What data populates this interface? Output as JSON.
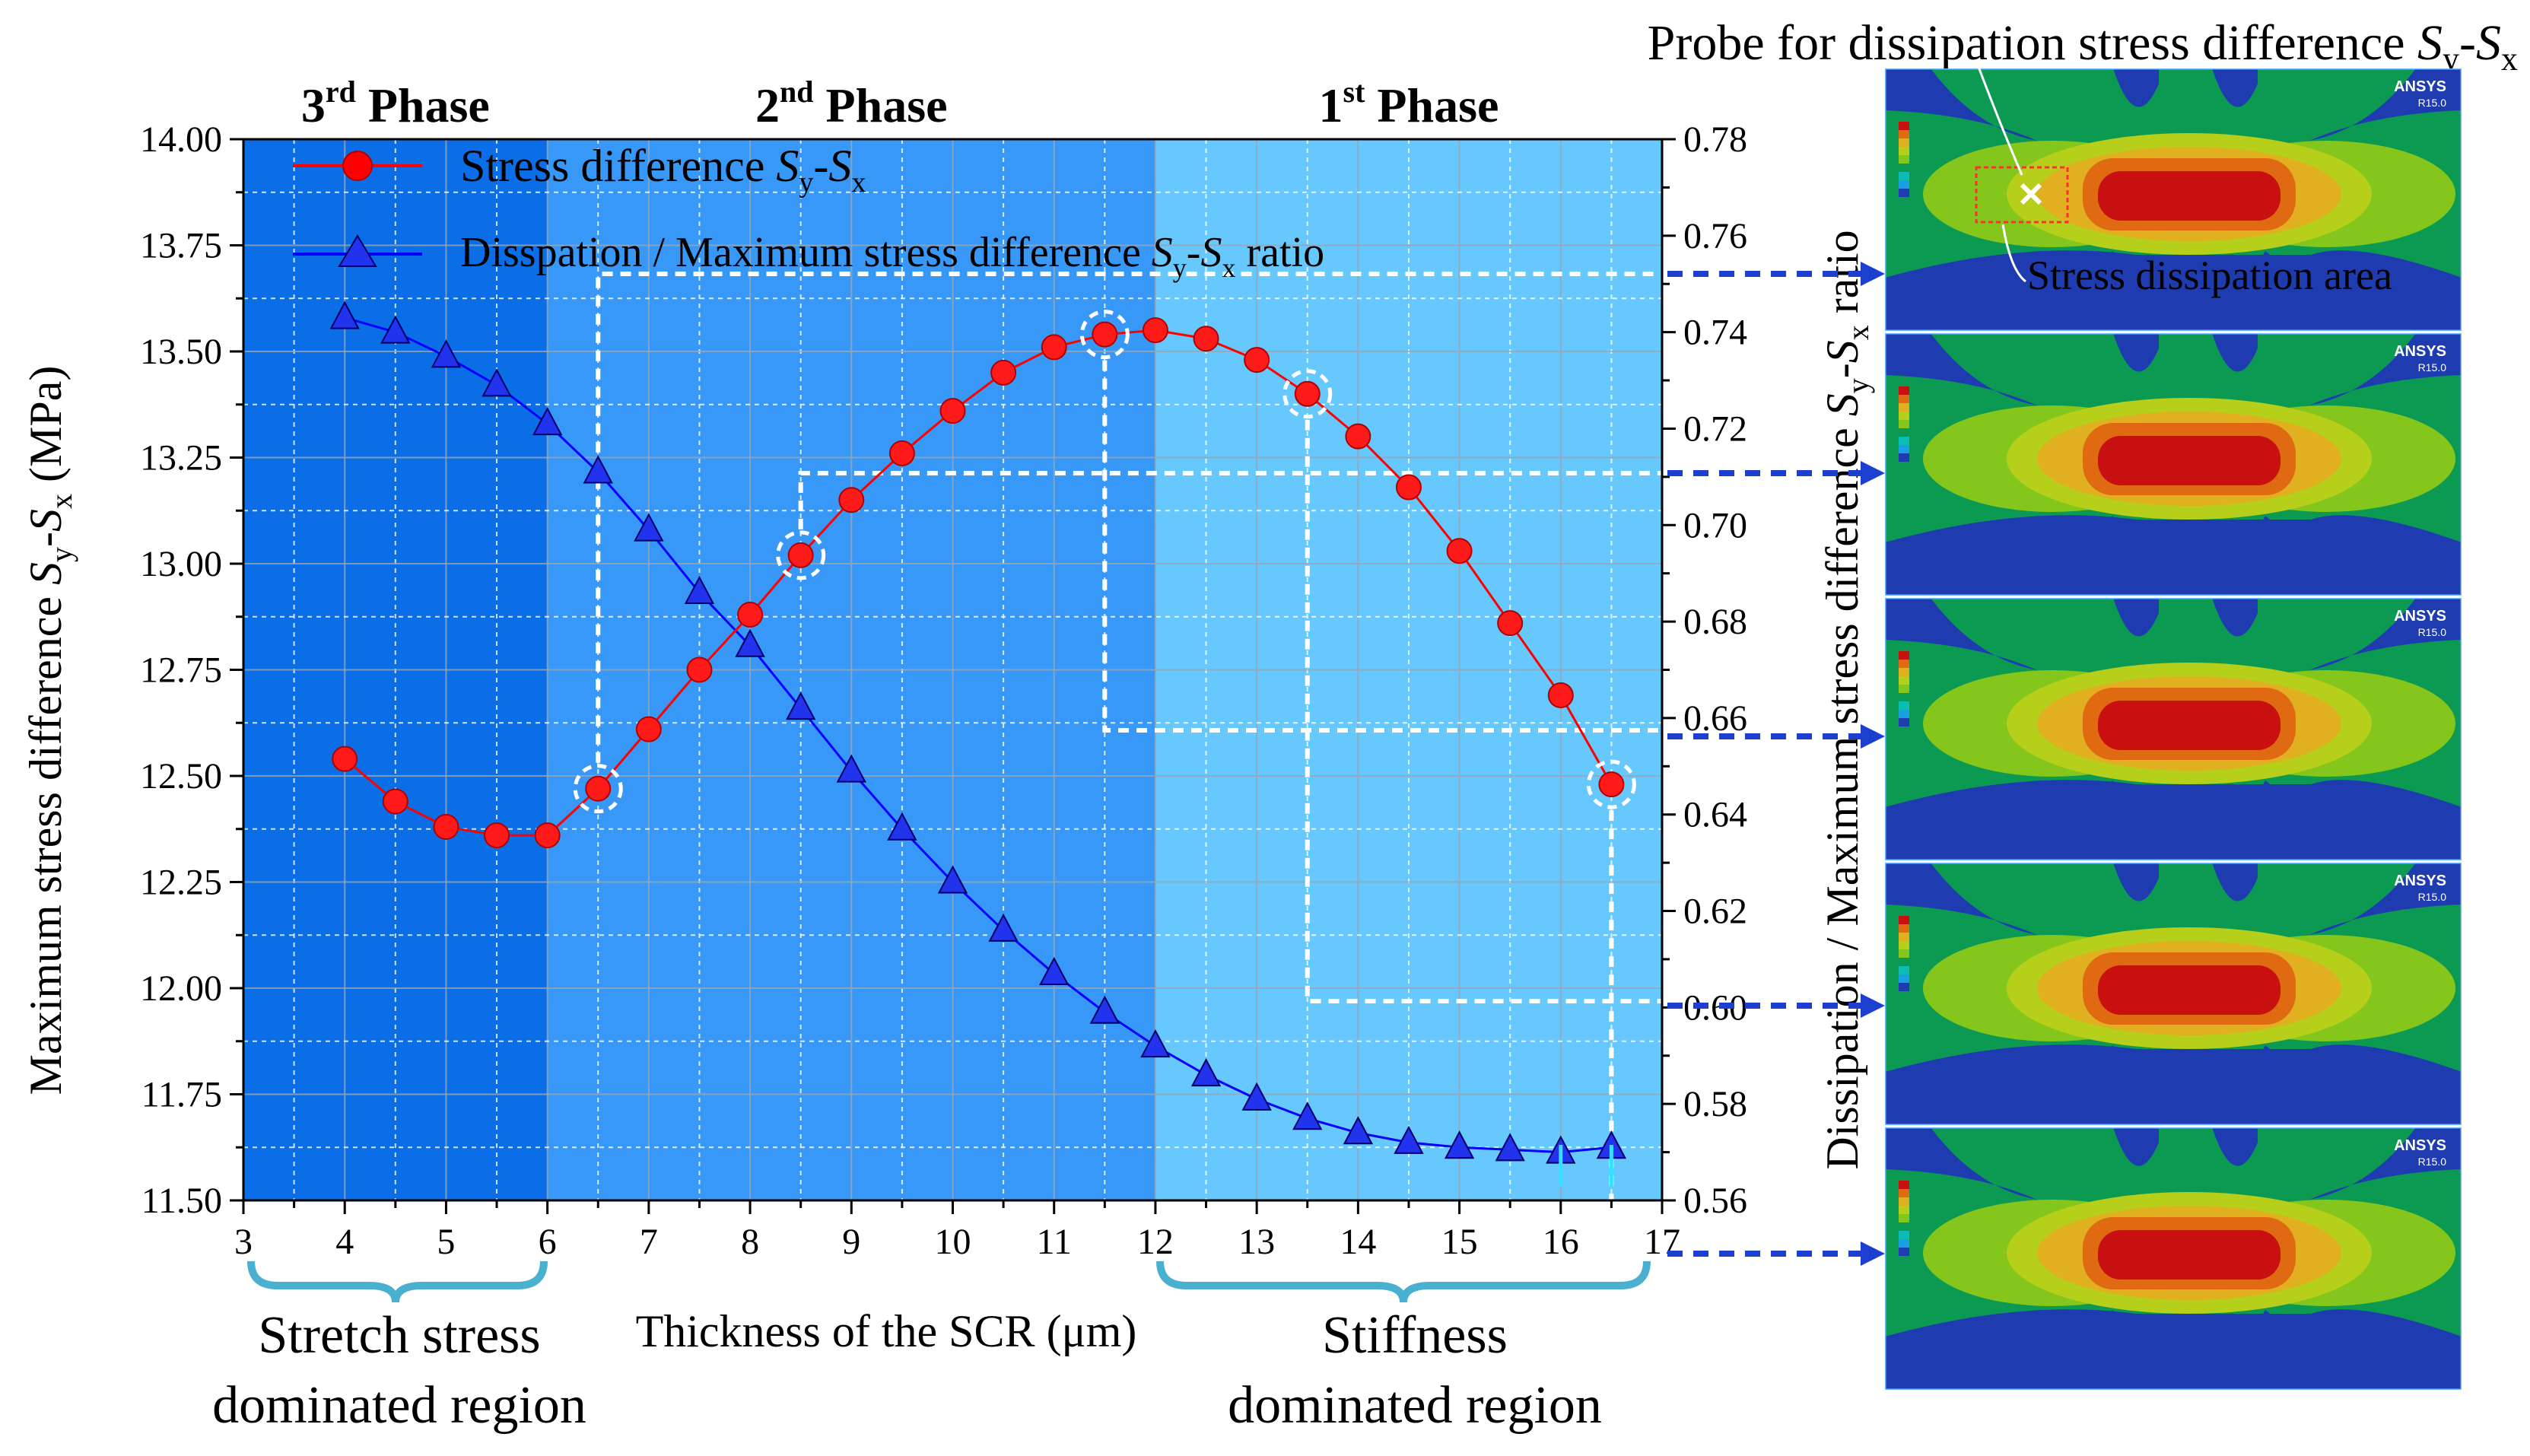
{
  "chart_data": {
    "type": "line",
    "x": [
      4,
      4.5,
      5,
      5.5,
      6,
      6.5,
      7,
      7.5,
      8,
      8.5,
      9,
      9.5,
      10,
      10.5,
      11,
      11.5,
      12,
      12.5,
      13,
      13.5,
      14,
      14.5,
      15,
      15.5,
      16,
      16.5
    ],
    "series": [
      {
        "name": "Stress difference S_y-S_x",
        "axis": "left",
        "color": "#ff0000",
        "marker": "circle",
        "values": [
          12.54,
          12.44,
          12.38,
          12.36,
          12.36,
          12.47,
          12.61,
          12.75,
          12.88,
          13.02,
          13.15,
          13.26,
          13.36,
          13.45,
          13.51,
          13.54,
          13.55,
          13.53,
          13.48,
          13.4,
          13.3,
          13.18,
          13.03,
          12.86,
          12.69,
          12.48
        ]
      },
      {
        "name": "Disspation / Maximum stress difference S_y-S_x ratio",
        "axis": "right",
        "color": "#0000ff",
        "marker": "triangle",
        "values": [
          0.743,
          0.74,
          0.735,
          0.729,
          0.721,
          0.711,
          0.699,
          0.686,
          0.675,
          0.662,
          0.649,
          0.637,
          0.626,
          0.616,
          0.607,
          0.599,
          0.592,
          0.586,
          0.581,
          0.577,
          0.574,
          0.572,
          0.571,
          0.5705,
          0.57,
          0.571
        ]
      }
    ],
    "xlim": [
      3,
      17
    ],
    "ylim": [
      11.5,
      14.0
    ],
    "y2lim": [
      0.56,
      0.78
    ],
    "xticks": [
      "3",
      "4",
      "5",
      "6",
      "7",
      "8",
      "9",
      "10",
      "11",
      "12",
      "13",
      "14",
      "15",
      "16",
      "17"
    ],
    "yticks": [
      "11.50",
      "11.75",
      "12.00",
      "12.25",
      "12.50",
      "12.75",
      "13.00",
      "13.25",
      "13.50",
      "13.75",
      "14.00"
    ],
    "y2ticks": [
      "0.56",
      "0.58",
      "0.60",
      "0.62",
      "0.64",
      "0.66",
      "0.68",
      "0.70",
      "0.72",
      "0.74",
      "0.76",
      "0.78"
    ],
    "xlabel": "Thickness of the SCR (μm)",
    "ylabel": "Maximum stress difference S_y-S_x (MPa)",
    "y2label": "Dissipation / Maximum stress difference S_y-S_x ratio",
    "grid": true,
    "legend_position": "top-left",
    "phases": [
      {
        "label": "3rd Phase",
        "base": "3",
        "sup": "rd",
        "word": "Phase",
        "x_range": [
          3,
          6
        ],
        "color": "#0b6ee6"
      },
      {
        "label": "2nd Phase",
        "base": "2",
        "sup": "nd",
        "word": "Phase",
        "x_range": [
          6,
          12
        ],
        "color": "#3898f7"
      },
      {
        "label": "1st Phase",
        "base": "1",
        "sup": "st",
        "word": "Phase",
        "x_range": [
          12,
          17
        ],
        "color": "#66c8fc"
      }
    ],
    "highlighted_x": [
      6.5,
      8.5,
      11.5,
      13.5,
      16.5
    ],
    "region_labels": {
      "left": [
        "Stretch stress",
        "dominated region"
      ],
      "right": [
        "Stiffness",
        "dominated region"
      ]
    }
  },
  "probe_title": "Probe for dissipation stress difference S_y-S_x",
  "dissipation_label": "Stress dissipation area",
  "ansys": {
    "brand": "ANSYS",
    "version": "R15.0"
  },
  "colors": {
    "red_series": "#ff0000",
    "blue_series": "#0000ff",
    "connector": "#1c3fd0"
  }
}
